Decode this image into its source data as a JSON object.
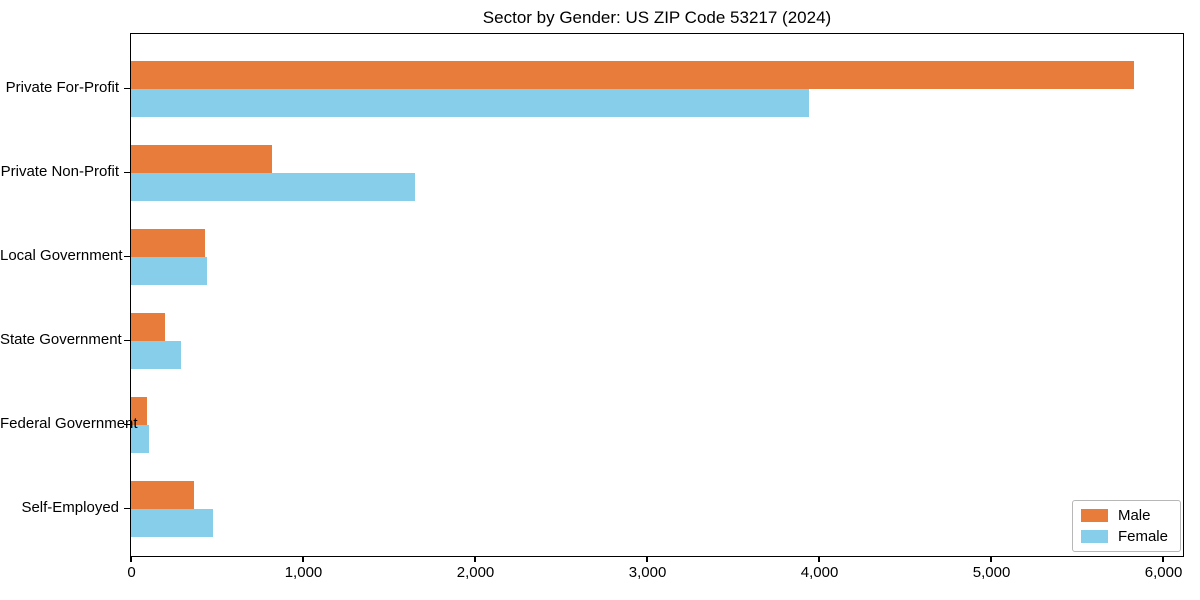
{
  "chart_data": {
    "type": "bar",
    "orientation": "horizontal",
    "title": "Sector by Gender: US ZIP Code 53217 (2024)",
    "categories": [
      "Private For-Profit",
      "Private Non-Profit",
      "Local Government",
      "State Government",
      "Federal Government",
      "Self-Employed"
    ],
    "series": [
      {
        "name": "Male",
        "color": "#e87d3b",
        "values": [
          5830,
          820,
          430,
          200,
          95,
          365
        ]
      },
      {
        "name": "Female",
        "color": "#87ceeb",
        "values": [
          3940,
          1650,
          440,
          290,
          105,
          475
        ]
      }
    ],
    "xlabel": "",
    "ylabel": "",
    "xlim": [
      0,
      6110
    ],
    "xticks": [
      0,
      1000,
      2000,
      3000,
      4000,
      5000,
      6000
    ],
    "xtick_labels": [
      "0",
      "1,000",
      "2,000",
      "3,000",
      "4,000",
      "5,000",
      "6,000"
    ],
    "grid": false,
    "legend_position": "lower right"
  },
  "legend": {
    "items": [
      {
        "label": "Male",
        "color": "#e87d3b"
      },
      {
        "label": "Female",
        "color": "#87ceeb"
      }
    ]
  }
}
